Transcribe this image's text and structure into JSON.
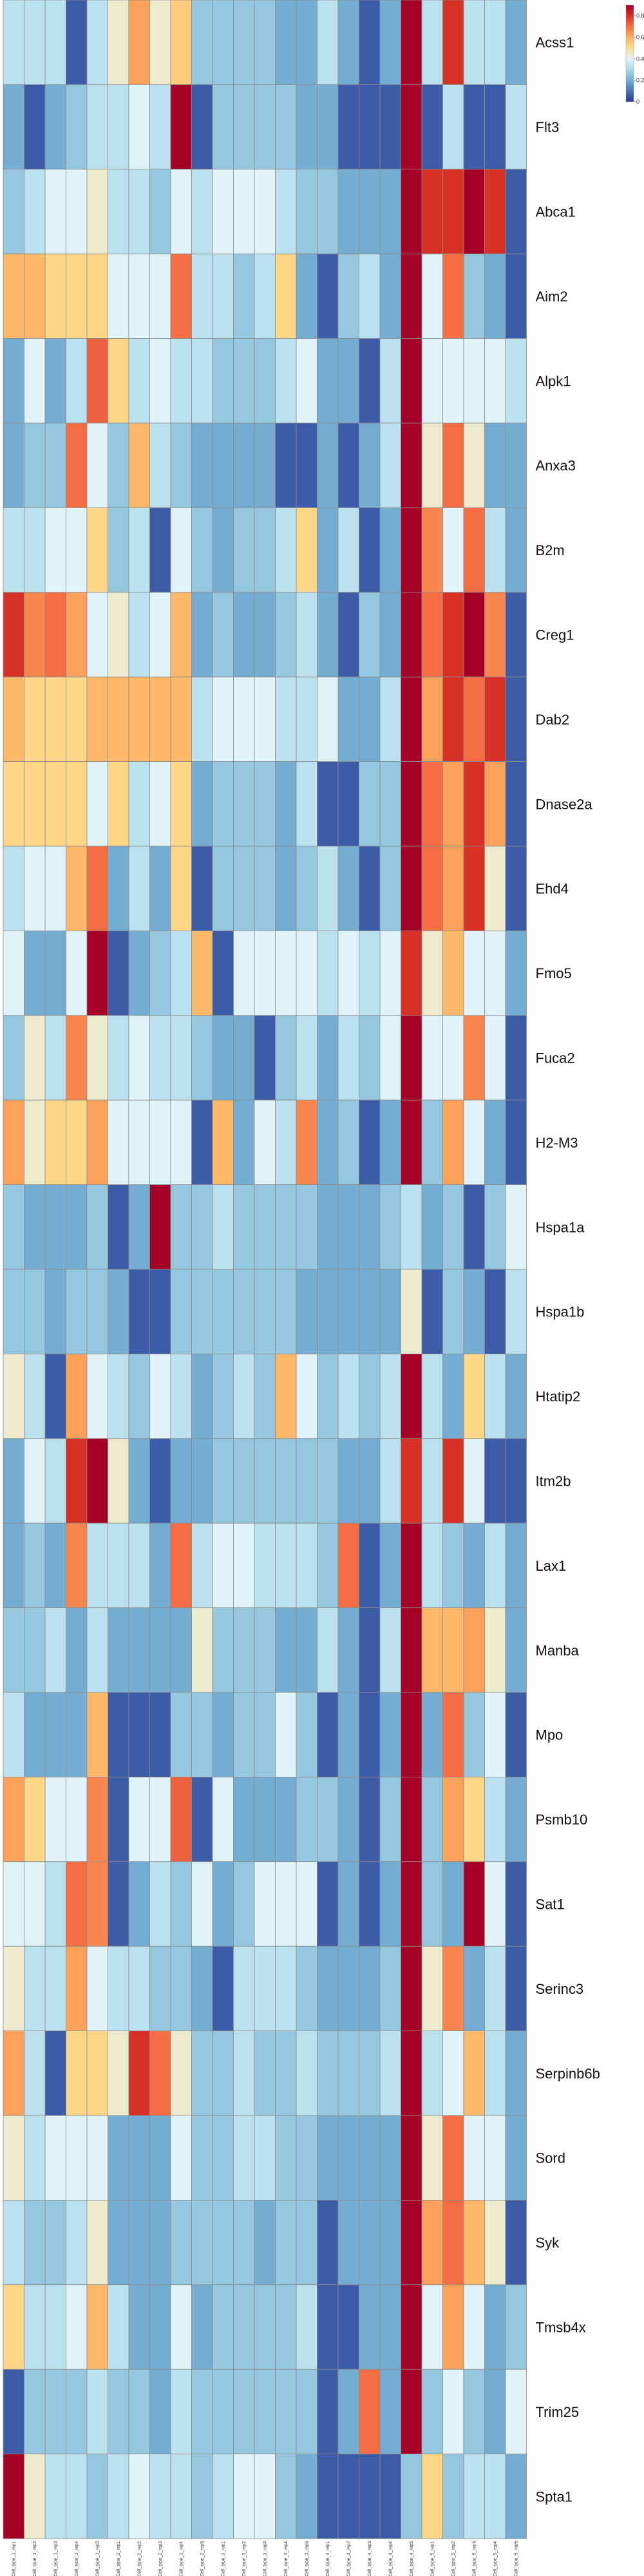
{
  "chart_data": {
    "type": "heatmap",
    "colormap": [
      "#313695",
      "#4575b4",
      "#74add1",
      "#abd9e9",
      "#e0f3f8",
      "#fee090",
      "#fdae61",
      "#f46d43",
      "#d73027",
      "#a50026"
    ],
    "cell_border_color": "#8c8c8c",
    "legend": {
      "position": "top-right",
      "ticks": [
        0,
        0.2,
        0.4,
        0.6,
        0.8
      ],
      "range": [
        0,
        0.9
      ]
    },
    "columns": [
      "Cell_type_1_rep1",
      "Cell_type_1_rep2",
      "Cell_type_1_rep3",
      "Cell_type_1_rep4",
      "Cell_type_1_rep5",
      "Cell_type_2_rep1",
      "Cell_type_2_rep2",
      "Cell_type_2_rep3",
      "Cell_type_2_rep4",
      "Cell_type_2_rep5",
      "Cell_type_3_rep1",
      "Cell_type_3_rep2",
      "Cell_type_3_rep3",
      "Cell_type_3_rep4",
      "Cell_type_3_rep5",
      "Cell_type_4_rep1",
      "Cell_type_4_rep2",
      "Cell_type_4_rep3",
      "Cell_type_4_rep4",
      "Cell_type_4_rep5",
      "Cell_type_5_rep1",
      "Cell_type_5_rep2",
      "Cell_type_5_rep3",
      "Cell_type_5_rep4",
      "Cell_type_5_rep5"
    ],
    "rows": [
      "Acss1",
      "Flt3",
      "Abca1",
      "Aim2",
      "Alpk1",
      "Anxa3",
      "B2m",
      "Creg1",
      "Dab2",
      "Dnase2a",
      "Ehd4",
      "Fmo5",
      "Fuca2",
      "H2-M3",
      "Hspa1a",
      "Hspa1b",
      "Htatip2",
      "Itm2b",
      "Lax1",
      "Manba",
      "Mpo",
      "Psmb10",
      "Sat1",
      "Serinc3",
      "Serpinb6b",
      "Sord",
      "Syk",
      "Tmsb4x",
      "Trim25",
      "Spta1"
    ],
    "values": [
      [
        0.33,
        0.33,
        0.33,
        0.06,
        0.33,
        0.44,
        0.62,
        0.44,
        0.54,
        0.26,
        0.26,
        0.26,
        0.26,
        0.2,
        0.2,
        0.33,
        0.2,
        0.06,
        0.2,
        0.9,
        0.33,
        0.8,
        0.33,
        0.33,
        0.2
      ],
      [
        0.2,
        0.06,
        0.2,
        0.26,
        0.33,
        0.33,
        0.4,
        0.33,
        0.9,
        0.06,
        0.26,
        0.26,
        0.26,
        0.26,
        0.2,
        0.2,
        0.06,
        0.06,
        0.06,
        0.9,
        0.06,
        0.33,
        0.06,
        0.06,
        0.33
      ],
      [
        0.26,
        0.33,
        0.4,
        0.4,
        0.44,
        0.33,
        0.33,
        0.26,
        0.4,
        0.33,
        0.4,
        0.4,
        0.4,
        0.33,
        0.26,
        0.26,
        0.2,
        0.2,
        0.2,
        0.9,
        0.8,
        0.8,
        0.9,
        0.8,
        0.06
      ],
      [
        0.58,
        0.58,
        0.52,
        0.52,
        0.52,
        0.4,
        0.4,
        0.4,
        0.7,
        0.33,
        0.33,
        0.26,
        0.33,
        0.52,
        0.2,
        0.06,
        0.26,
        0.33,
        0.2,
        0.9,
        0.4,
        0.7,
        0.26,
        0.2,
        0.06
      ],
      [
        0.2,
        0.4,
        0.2,
        0.33,
        0.72,
        0.52,
        0.33,
        0.4,
        0.33,
        0.33,
        0.26,
        0.26,
        0.26,
        0.33,
        0.4,
        0.2,
        0.2,
        0.06,
        0.33,
        0.9,
        0.4,
        0.4,
        0.4,
        0.4,
        0.33
      ],
      [
        0.2,
        0.26,
        0.26,
        0.7,
        0.4,
        0.26,
        0.58,
        0.33,
        0.26,
        0.2,
        0.2,
        0.2,
        0.2,
        0.06,
        0.06,
        0.2,
        0.06,
        0.2,
        0.33,
        0.9,
        0.44,
        0.7,
        0.44,
        0.2,
        0.2
      ],
      [
        0.33,
        0.33,
        0.4,
        0.4,
        0.52,
        0.26,
        0.33,
        0.06,
        0.4,
        0.26,
        0.2,
        0.26,
        0.26,
        0.33,
        0.52,
        0.2,
        0.33,
        0.06,
        0.2,
        0.9,
        0.66,
        0.4,
        0.7,
        0.33,
        0.2
      ],
      [
        0.8,
        0.66,
        0.7,
        0.62,
        0.4,
        0.44,
        0.33,
        0.4,
        0.58,
        0.2,
        0.26,
        0.2,
        0.2,
        0.26,
        0.33,
        0.2,
        0.06,
        0.26,
        0.2,
        0.9,
        0.7,
        0.8,
        0.9,
        0.66,
        0.06
      ],
      [
        0.58,
        0.52,
        0.52,
        0.52,
        0.58,
        0.58,
        0.58,
        0.58,
        0.58,
        0.33,
        0.4,
        0.4,
        0.4,
        0.33,
        0.33,
        0.4,
        0.2,
        0.2,
        0.33,
        0.9,
        0.62,
        0.8,
        0.7,
        0.8,
        0.06
      ],
      [
        0.52,
        0.52,
        0.52,
        0.52,
        0.4,
        0.52,
        0.33,
        0.4,
        0.52,
        0.2,
        0.26,
        0.26,
        0.26,
        0.2,
        0.33,
        0.06,
        0.06,
        0.26,
        0.26,
        0.9,
        0.7,
        0.62,
        0.8,
        0.62,
        0.06
      ],
      [
        0.33,
        0.4,
        0.4,
        0.58,
        0.7,
        0.2,
        0.33,
        0.2,
        0.52,
        0.06,
        0.26,
        0.26,
        0.26,
        0.2,
        0.26,
        0.33,
        0.2,
        0.06,
        0.26,
        0.9,
        0.7,
        0.62,
        0.8,
        0.44,
        0.06
      ],
      [
        0.4,
        0.2,
        0.2,
        0.4,
        0.9,
        0.06,
        0.2,
        0.26,
        0.33,
        0.58,
        0.06,
        0.4,
        0.4,
        0.4,
        0.4,
        0.33,
        0.4,
        0.33,
        0.4,
        0.8,
        0.44,
        0.58,
        0.4,
        0.4,
        0.2
      ],
      [
        0.26,
        0.44,
        0.33,
        0.66,
        0.44,
        0.33,
        0.4,
        0.33,
        0.33,
        0.26,
        0.2,
        0.2,
        0.06,
        0.26,
        0.33,
        0.2,
        0.33,
        0.26,
        0.4,
        0.9,
        0.4,
        0.4,
        0.66,
        0.4,
        0.06
      ],
      [
        0.62,
        0.44,
        0.52,
        0.52,
        0.62,
        0.4,
        0.4,
        0.4,
        0.4,
        0.06,
        0.58,
        0.2,
        0.4,
        0.33,
        0.66,
        0.2,
        0.26,
        0.06,
        0.2,
        0.9,
        0.26,
        0.62,
        0.4,
        0.2,
        0.06
      ],
      [
        0.26,
        0.2,
        0.2,
        0.2,
        0.26,
        0.06,
        0.2,
        0.9,
        0.26,
        0.26,
        0.33,
        0.26,
        0.26,
        0.26,
        0.26,
        0.2,
        0.2,
        0.2,
        0.26,
        0.33,
        0.2,
        0.26,
        0.06,
        0.26,
        0.4
      ],
      [
        0.26,
        0.26,
        0.2,
        0.26,
        0.26,
        0.2,
        0.06,
        0.06,
        0.26,
        0.26,
        0.26,
        0.26,
        0.26,
        0.26,
        0.2,
        0.2,
        0.2,
        0.2,
        0.2,
        0.44,
        0.06,
        0.26,
        0.2,
        0.06,
        0.33
      ],
      [
        0.44,
        0.33,
        0.06,
        0.62,
        0.4,
        0.33,
        0.26,
        0.4,
        0.33,
        0.2,
        0.26,
        0.33,
        0.26,
        0.58,
        0.4,
        0.26,
        0.33,
        0.26,
        0.33,
        0.9,
        0.33,
        0.2,
        0.52,
        0.33,
        0.2
      ],
      [
        0.2,
        0.4,
        0.33,
        0.8,
        0.9,
        0.44,
        0.2,
        0.06,
        0.2,
        0.2,
        0.26,
        0.26,
        0.26,
        0.26,
        0.26,
        0.26,
        0.2,
        0.2,
        0.33,
        0.8,
        0.33,
        0.8,
        0.4,
        0.06,
        0.06
      ],
      [
        0.2,
        0.26,
        0.2,
        0.66,
        0.33,
        0.33,
        0.33,
        0.2,
        0.7,
        0.33,
        0.4,
        0.4,
        0.33,
        0.33,
        0.33,
        0.26,
        0.7,
        0.06,
        0.2,
        0.9,
        0.33,
        0.26,
        0.2,
        0.33,
        0.2
      ],
      [
        0.26,
        0.26,
        0.33,
        0.2,
        0.33,
        0.2,
        0.2,
        0.2,
        0.2,
        0.44,
        0.26,
        0.26,
        0.26,
        0.2,
        0.2,
        0.33,
        0.2,
        0.06,
        0.33,
        0.9,
        0.58,
        0.58,
        0.62,
        0.44,
        0.2
      ],
      [
        0.33,
        0.2,
        0.2,
        0.2,
        0.58,
        0.06,
        0.06,
        0.06,
        0.26,
        0.26,
        0.2,
        0.26,
        0.26,
        0.4,
        0.26,
        0.06,
        0.2,
        0.06,
        0.2,
        0.9,
        0.2,
        0.7,
        0.26,
        0.4,
        0.06
      ],
      [
        0.62,
        0.52,
        0.4,
        0.4,
        0.66,
        0.06,
        0.4,
        0.4,
        0.72,
        0.06,
        0.4,
        0.2,
        0.2,
        0.2,
        0.26,
        0.26,
        0.2,
        0.06,
        0.26,
        0.9,
        0.26,
        0.62,
        0.52,
        0.33,
        0.2
      ],
      [
        0.4,
        0.4,
        0.33,
        0.7,
        0.66,
        0.06,
        0.2,
        0.33,
        0.26,
        0.4,
        0.2,
        0.26,
        0.4,
        0.4,
        0.4,
        0.06,
        0.2,
        0.06,
        0.2,
        0.9,
        0.26,
        0.2,
        0.9,
        0.4,
        0.06
      ],
      [
        0.44,
        0.33,
        0.33,
        0.62,
        0.4,
        0.33,
        0.33,
        0.26,
        0.26,
        0.2,
        0.06,
        0.33,
        0.33,
        0.33,
        0.26,
        0.2,
        0.2,
        0.2,
        0.26,
        0.9,
        0.44,
        0.66,
        0.2,
        0.33,
        0.06
      ],
      [
        0.62,
        0.33,
        0.06,
        0.52,
        0.52,
        0.44,
        0.8,
        0.7,
        0.44,
        0.26,
        0.26,
        0.33,
        0.26,
        0.26,
        0.33,
        0.26,
        0.26,
        0.26,
        0.33,
        0.9,
        0.33,
        0.4,
        0.58,
        0.33,
        0.2
      ],
      [
        0.44,
        0.33,
        0.4,
        0.4,
        0.4,
        0.2,
        0.2,
        0.2,
        0.4,
        0.26,
        0.26,
        0.33,
        0.33,
        0.26,
        0.26,
        0.2,
        0.2,
        0.2,
        0.2,
        0.9,
        0.44,
        0.7,
        0.4,
        0.4,
        0.2
      ],
      [
        0.33,
        0.26,
        0.26,
        0.33,
        0.44,
        0.2,
        0.2,
        0.2,
        0.26,
        0.26,
        0.26,
        0.26,
        0.2,
        0.26,
        0.26,
        0.06,
        0.2,
        0.2,
        0.2,
        0.9,
        0.62,
        0.7,
        0.58,
        0.44,
        0.06
      ],
      [
        0.52,
        0.33,
        0.33,
        0.4,
        0.58,
        0.33,
        0.2,
        0.2,
        0.4,
        0.2,
        0.26,
        0.26,
        0.26,
        0.26,
        0.33,
        0.06,
        0.06,
        0.2,
        0.2,
        0.9,
        0.4,
        0.62,
        0.4,
        0.2,
        0.26
      ],
      [
        0.06,
        0.26,
        0.26,
        0.26,
        0.33,
        0.26,
        0.26,
        0.2,
        0.33,
        0.26,
        0.26,
        0.26,
        0.26,
        0.26,
        0.26,
        0.06,
        0.2,
        0.7,
        0.2,
        0.9,
        0.26,
        0.4,
        0.26,
        0.2,
        0.4
      ],
      [
        0.9,
        0.44,
        0.33,
        0.33,
        0.26,
        0.33,
        0.4,
        0.33,
        0.33,
        0.26,
        0.33,
        0.4,
        0.4,
        0.26,
        0.2,
        0.06,
        0.06,
        0.06,
        0.06,
        0.26,
        0.52,
        0.26,
        0.33,
        0.33,
        0.2
      ]
    ]
  }
}
